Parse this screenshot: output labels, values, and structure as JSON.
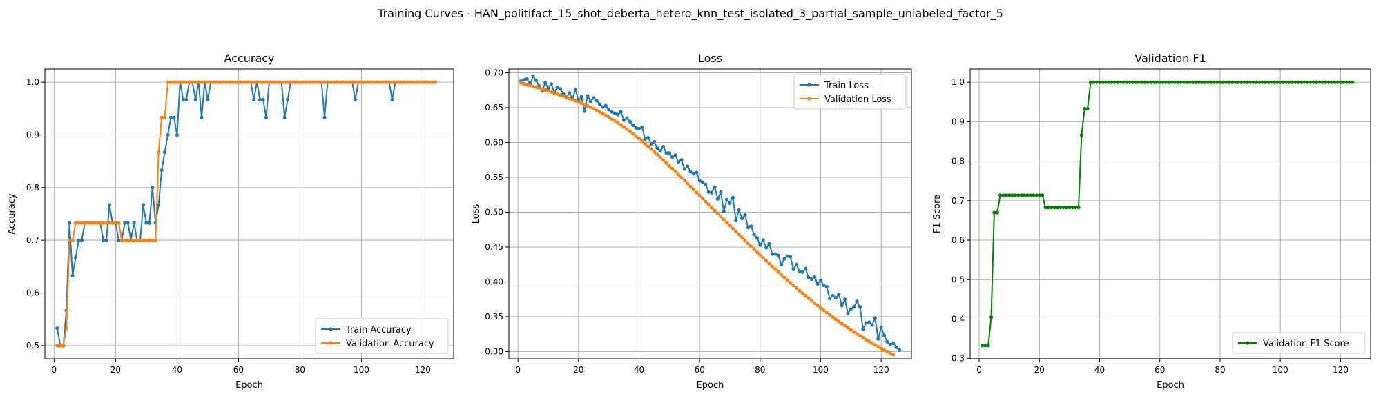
{
  "suptitle": "Training Curves - HAN_politifact_15_shot_deberta_hetero_knn_test_isolated_3_partial_sample_unlabeled_factor_5",
  "colors": {
    "train": "#1f77b4",
    "val": "#ff7f0e",
    "f1": "#008000"
  },
  "chart_data": [
    {
      "type": "line",
      "title": "Accuracy",
      "xlabel": "Epoch",
      "ylabel": "Accuracy",
      "xlim": [
        -3,
        130
      ],
      "ylim": [
        0.475,
        1.025
      ],
      "xticks": [
        0,
        20,
        40,
        60,
        80,
        100,
        120
      ],
      "yticks": [
        0.5,
        0.6,
        0.7,
        0.8,
        0.9,
        1.0
      ],
      "ytick_labels": [
        "0.5",
        "0.6",
        "0.7",
        "0.8",
        "0.9",
        "1.0"
      ],
      "grid": true,
      "legend": "lower-right",
      "series": [
        {
          "name": "Train Accuracy",
          "color": "#1f77b4",
          "x_start": 1,
          "values": [
            0.533,
            0.5,
            0.5,
            0.567,
            0.733,
            0.633,
            0.667,
            0.7,
            0.7,
            0.733,
            0.733,
            0.733,
            0.733,
            0.733,
            0.733,
            0.7,
            0.7,
            0.767,
            0.733,
            0.733,
            0.7,
            0.7,
            0.733,
            0.733,
            0.7,
            0.733,
            0.7,
            0.7,
            0.767,
            0.733,
            0.733,
            0.8,
            0.733,
            0.767,
            0.833,
            0.867,
            0.9,
            0.933,
            0.933,
            0.9,
            1.0,
            0.967,
            0.967,
            1.0,
            1.0,
            0.967,
            1.0,
            0.933,
            1.0,
            0.967,
            1.0,
            1.0,
            1.0,
            1.0,
            1.0,
            1.0,
            1.0,
            1.0,
            1.0,
            1.0,
            1.0,
            1.0,
            1.0,
            1.0,
            0.967,
            1.0,
            0.967,
            0.967,
            0.933,
            1.0,
            1.0,
            1.0,
            1.0,
            1.0,
            0.933,
            0.967,
            1.0,
            1.0,
            1.0,
            1.0,
            1.0,
            1.0,
            1.0,
            1.0,
            1.0,
            1.0,
            1.0,
            0.933,
            1.0,
            1.0,
            1.0,
            1.0,
            1.0,
            1.0,
            1.0,
            1.0,
            1.0,
            0.967,
            1.0,
            1.0,
            1.0,
            1.0,
            1.0,
            1.0,
            1.0,
            1.0,
            1.0,
            1.0,
            1.0,
            0.967,
            1.0,
            1.0,
            1.0,
            1.0,
            1.0,
            1.0,
            1.0,
            1.0,
            1.0,
            1.0,
            1.0,
            1.0,
            1.0,
            1.0
          ]
        },
        {
          "name": "Validation Accuracy",
          "color": "#ff7f0e",
          "x_start": 1,
          "values": [
            0.5,
            0.5,
            0.5,
            0.533,
            0.7,
            0.7,
            0.733,
            0.733,
            0.733,
            0.733,
            0.733,
            0.733,
            0.733,
            0.733,
            0.733,
            0.733,
            0.733,
            0.733,
            0.733,
            0.733,
            0.733,
            0.7,
            0.7,
            0.7,
            0.7,
            0.7,
            0.7,
            0.7,
            0.7,
            0.7,
            0.7,
            0.7,
            0.7,
            0.867,
            0.933,
            0.933,
            1.0,
            1.0,
            1.0,
            1.0,
            1.0,
            1.0,
            1.0,
            1.0,
            1.0,
            1.0,
            1.0,
            1.0,
            1.0,
            1.0,
            1.0,
            1.0,
            1.0,
            1.0,
            1.0,
            1.0,
            1.0,
            1.0,
            1.0,
            1.0,
            1.0,
            1.0,
            1.0,
            1.0,
            1.0,
            1.0,
            1.0,
            1.0,
            1.0,
            1.0,
            1.0,
            1.0,
            1.0,
            1.0,
            1.0,
            1.0,
            1.0,
            1.0,
            1.0,
            1.0,
            1.0,
            1.0,
            1.0,
            1.0,
            1.0,
            1.0,
            1.0,
            1.0,
            1.0,
            1.0,
            1.0,
            1.0,
            1.0,
            1.0,
            1.0,
            1.0,
            1.0,
            1.0,
            1.0,
            1.0,
            1.0,
            1.0,
            1.0,
            1.0,
            1.0,
            1.0,
            1.0,
            1.0,
            1.0,
            1.0,
            1.0,
            1.0,
            1.0,
            1.0,
            1.0,
            1.0,
            1.0,
            1.0,
            1.0,
            1.0,
            1.0,
            1.0,
            1.0,
            1.0
          ]
        }
      ]
    },
    {
      "type": "line",
      "title": "Loss",
      "xlabel": "Epoch",
      "ylabel": "Loss",
      "xlim": [
        -3,
        130
      ],
      "ylim": [
        0.2895,
        0.7055
      ],
      "xticks": [
        0,
        20,
        40,
        60,
        80,
        100,
        120
      ],
      "yticks": [
        0.3,
        0.35,
        0.4,
        0.45,
        0.5,
        0.55,
        0.6,
        0.65,
        0.7
      ],
      "ytick_labels": [
        "0.30",
        "0.35",
        "0.40",
        "0.45",
        "0.50",
        "0.55",
        "0.60",
        "0.65",
        "0.70"
      ],
      "grid": true,
      "legend": "upper-right",
      "series": [
        {
          "name": "Train Loss",
          "color": "#1f77b4",
          "x_start": 1,
          "values": [
            0.688,
            0.69,
            0.691,
            0.684,
            0.695,
            0.689,
            0.681,
            0.674,
            0.686,
            0.678,
            0.684,
            0.672,
            0.679,
            0.677,
            0.67,
            0.664,
            0.671,
            0.663,
            0.676,
            0.66,
            0.666,
            0.645,
            0.667,
            0.659,
            0.664,
            0.66,
            0.655,
            0.651,
            0.653,
            0.647,
            0.644,
            0.642,
            0.64,
            0.644,
            0.632,
            0.635,
            0.63,
            0.625,
            0.621,
            0.62,
            0.622,
            0.605,
            0.607,
            0.598,
            0.601,
            0.592,
            0.588,
            0.594,
            0.585,
            0.585,
            0.579,
            0.582,
            0.572,
            0.575,
            0.562,
            0.566,
            0.558,
            0.555,
            0.557,
            0.545,
            0.543,
            0.54,
            0.529,
            0.528,
            0.536,
            0.519,
            0.529,
            0.501,
            0.518,
            0.513,
            0.521,
            0.488,
            0.503,
            0.491,
            0.496,
            0.478,
            0.48,
            0.468,
            0.463,
            0.453,
            0.46,
            0.449,
            0.455,
            0.44,
            0.44,
            0.438,
            0.425,
            0.433,
            0.437,
            0.436,
            0.418,
            0.425,
            0.415,
            0.414,
            0.419,
            0.406,
            0.404,
            0.407,
            0.397,
            0.402,
            0.395,
            0.393,
            0.376,
            0.38,
            0.377,
            0.382,
            0.366,
            0.375,
            0.355,
            0.361,
            0.364,
            0.372,
            0.364,
            0.332,
            0.341,
            0.342,
            0.338,
            0.348,
            0.318,
            0.335,
            0.323,
            0.314,
            0.31,
            0.312,
            0.306,
            0.302
          ]
        },
        {
          "name": "Validation Loss",
          "color": "#ff7f0e",
          "x_start": 1,
          "values": [
            0.6855,
            0.6843,
            0.6831,
            0.6819,
            0.6807,
            0.6795,
            0.6781,
            0.6768,
            0.6754,
            0.674,
            0.6725,
            0.6711,
            0.6696,
            0.668,
            0.6665,
            0.6649,
            0.6633,
            0.6616,
            0.6599,
            0.6582,
            0.6564,
            0.6546,
            0.6526,
            0.6506,
            0.6484,
            0.6462,
            0.6439,
            0.6415,
            0.639,
            0.6365,
            0.6338,
            0.6311,
            0.6282,
            0.6253,
            0.6222,
            0.6191,
            0.6158,
            0.6125,
            0.6091,
            0.6056,
            0.602,
            0.5983,
            0.5945,
            0.5907,
            0.5868,
            0.5829,
            0.5789,
            0.5748,
            0.5707,
            0.5666,
            0.5624,
            0.5582,
            0.554,
            0.5498,
            0.5455,
            0.5412,
            0.5369,
            0.5326,
            0.5283,
            0.524,
            0.5197,
            0.5154,
            0.5111,
            0.5068,
            0.5025,
            0.4982,
            0.4939,
            0.4896,
            0.4853,
            0.481,
            0.4767,
            0.4724,
            0.4681,
            0.4638,
            0.4595,
            0.4552,
            0.451,
            0.4468,
            0.4426,
            0.4384,
            0.4343,
            0.4302,
            0.4261,
            0.4221,
            0.4181,
            0.4141,
            0.4102,
            0.4063,
            0.4024,
            0.3986,
            0.3948,
            0.3911,
            0.3874,
            0.3837,
            0.3801,
            0.3765,
            0.373,
            0.3695,
            0.366,
            0.3626,
            0.3592,
            0.3559,
            0.3526,
            0.3494,
            0.3462,
            0.3431,
            0.34,
            0.337,
            0.334,
            0.3311,
            0.3282,
            0.3254,
            0.3226,
            0.3198,
            0.3171,
            0.3145,
            0.3119,
            0.3094,
            0.3069,
            0.3045,
            0.3021,
            0.2998,
            0.2976,
            0.2954
          ]
        }
      ]
    },
    {
      "type": "line",
      "title": "Validation F1",
      "xlabel": "Epoch",
      "ylabel": "F1 Score",
      "xlim": [
        -3,
        130
      ],
      "ylim": [
        0.2995,
        1.0335
      ],
      "xticks": [
        0,
        20,
        40,
        60,
        80,
        100,
        120
      ],
      "yticks": [
        0.3,
        0.4,
        0.5,
        0.6,
        0.7,
        0.8,
        0.9,
        1.0
      ],
      "ytick_labels": [
        "0.3",
        "0.4",
        "0.5",
        "0.6",
        "0.7",
        "0.8",
        "0.9",
        "1.0"
      ],
      "grid": true,
      "legend": "lower-right",
      "series": [
        {
          "name": "Validation F1 Score",
          "color": "#008000",
          "x_start": 1,
          "values": [
            0.333,
            0.333,
            0.333,
            0.405,
            0.67,
            0.67,
            0.714,
            0.714,
            0.714,
            0.714,
            0.714,
            0.714,
            0.714,
            0.714,
            0.714,
            0.714,
            0.714,
            0.714,
            0.714,
            0.714,
            0.714,
            0.683,
            0.683,
            0.683,
            0.683,
            0.683,
            0.683,
            0.683,
            0.683,
            0.683,
            0.683,
            0.683,
            0.683,
            0.866,
            0.933,
            0.933,
            1.0,
            1.0,
            1.0,
            1.0,
            1.0,
            1.0,
            1.0,
            1.0,
            1.0,
            1.0,
            1.0,
            1.0,
            1.0,
            1.0,
            1.0,
            1.0,
            1.0,
            1.0,
            1.0,
            1.0,
            1.0,
            1.0,
            1.0,
            1.0,
            1.0,
            1.0,
            1.0,
            1.0,
            1.0,
            1.0,
            1.0,
            1.0,
            1.0,
            1.0,
            1.0,
            1.0,
            1.0,
            1.0,
            1.0,
            1.0,
            1.0,
            1.0,
            1.0,
            1.0,
            1.0,
            1.0,
            1.0,
            1.0,
            1.0,
            1.0,
            1.0,
            1.0,
            1.0,
            1.0,
            1.0,
            1.0,
            1.0,
            1.0,
            1.0,
            1.0,
            1.0,
            1.0,
            1.0,
            1.0,
            1.0,
            1.0,
            1.0,
            1.0,
            1.0,
            1.0,
            1.0,
            1.0,
            1.0,
            1.0,
            1.0,
            1.0,
            1.0,
            1.0,
            1.0,
            1.0,
            1.0,
            1.0,
            1.0,
            1.0,
            1.0,
            1.0,
            1.0,
            1.0
          ]
        }
      ]
    }
  ]
}
